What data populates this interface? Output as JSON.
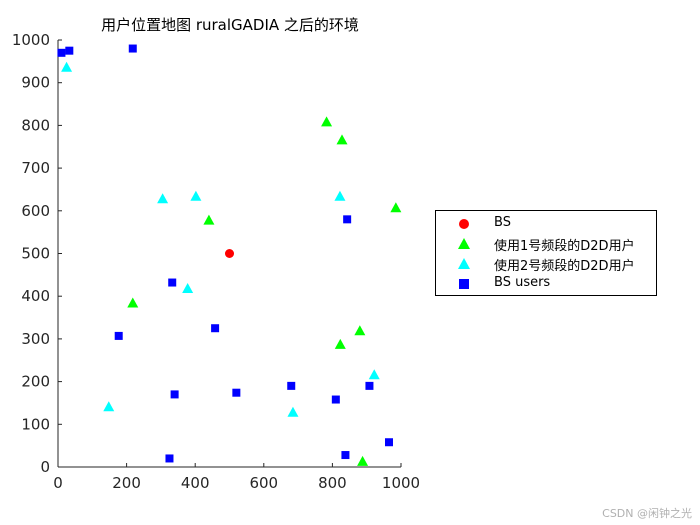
{
  "chart_data": {
    "type": "scatter",
    "title": "用户位置地图 ruralGADIA 之后的环境",
    "xlabel": "",
    "ylabel": "",
    "xlim": [
      0,
      1000
    ],
    "ylim": [
      0,
      1000
    ],
    "xticks": [
      0,
      200,
      400,
      600,
      800,
      1000
    ],
    "yticks": [
      0,
      100,
      200,
      300,
      400,
      500,
      600,
      700,
      800,
      900,
      1000
    ],
    "grid": false,
    "legend_position": "right",
    "series": [
      {
        "name": "BS",
        "marker": "circle",
        "color": "#ff0000",
        "points": [
          [
            500,
            500
          ]
        ]
      },
      {
        "name": "使用1号频段的D2D用户",
        "marker": "triangle",
        "color": "#00ff00",
        "points": [
          [
            218,
            383
          ],
          [
            440,
            577
          ],
          [
            783,
            807
          ],
          [
            828,
            765
          ],
          [
            985,
            606
          ],
          [
            880,
            318
          ],
          [
            823,
            286
          ],
          [
            888,
            12
          ]
        ]
      },
      {
        "name": "使用2号频段的D2D用户",
        "marker": "triangle",
        "color": "#00ffff",
        "points": [
          [
            25,
            935
          ],
          [
            305,
            627
          ],
          [
            402,
            633
          ],
          [
            378,
            417
          ],
          [
            822,
            633
          ],
          [
            148,
            140
          ],
          [
            685,
            127
          ],
          [
            922,
            215
          ]
        ]
      },
      {
        "name": "BS users",
        "marker": "square",
        "color": "#0000ff",
        "points": [
          [
            10,
            970
          ],
          [
            33,
            975
          ],
          [
            218,
            980
          ],
          [
            843,
            580
          ],
          [
            333,
            432
          ],
          [
            177,
            307
          ],
          [
            458,
            325
          ],
          [
            340,
            170
          ],
          [
            520,
            174
          ],
          [
            680,
            190
          ],
          [
            810,
            158
          ],
          [
            908,
            190
          ],
          [
            838,
            28
          ],
          [
            965,
            58
          ],
          [
            325,
            20
          ]
        ]
      }
    ]
  },
  "watermark": "CSDN @闲钟之光"
}
